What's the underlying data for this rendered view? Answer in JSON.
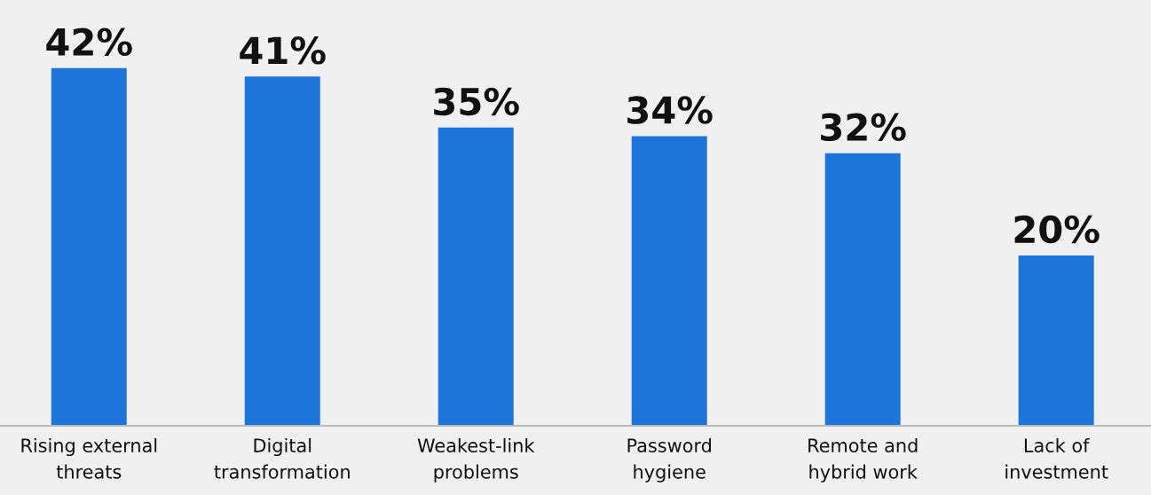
{
  "chart_data": {
    "type": "bar",
    "categories": [
      "Rising external\nthreats",
      "Digital\ntransformation",
      "Weakest-link\nproblems",
      "Password\nhygiene",
      "Remote and\nhybrid work",
      "Lack of\ninvestment"
    ],
    "values": [
      42,
      41,
      35,
      34,
      32,
      20
    ],
    "value_labels": [
      "42%",
      "41%",
      "35%",
      "34%",
      "32%",
      "20%"
    ],
    "color": "#1e75d9",
    "grid": false,
    "legend": false
  }
}
